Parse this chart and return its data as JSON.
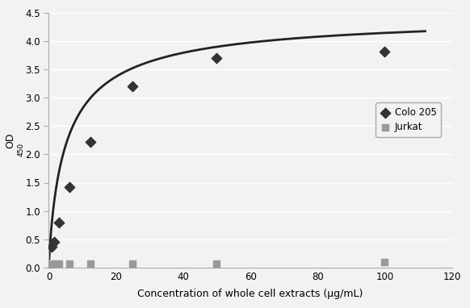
{
  "colo205_x": [
    0.78,
    1.56,
    3.125,
    6.25,
    12.5,
    25,
    50,
    100
  ],
  "colo205_y": [
    0.36,
    0.45,
    0.8,
    1.42,
    2.22,
    3.2,
    3.7,
    3.82
  ],
  "jurkat_x": [
    0.78,
    1.56,
    3.125,
    6.25,
    12.5,
    25,
    50,
    100
  ],
  "jurkat_y": [
    0.05,
    0.07,
    0.06,
    0.06,
    0.06,
    0.07,
    0.07,
    0.1
  ],
  "curve_x_start": 0.1,
  "curve_x_end": 112,
  "xlabel": "Concentration of whole cell extracts (μg/mL)",
  "xlim": [
    0,
    120
  ],
  "ylim": [
    0,
    4.5
  ],
  "xticks": [
    0,
    20,
    40,
    60,
    80,
    100,
    120
  ],
  "yticks": [
    0,
    0.5,
    1.0,
    1.5,
    2.0,
    2.5,
    3.0,
    3.5,
    4.0,
    4.5
  ],
  "colo205_color": "#333333",
  "jurkat_color": "#999999",
  "curve_color": "#222222",
  "background_color": "#f2f2f2",
  "plot_bg_color": "#f2f2f2",
  "grid_color": "#ffffff",
  "legend_labels": [
    "Colo 205",
    "Jurkat"
  ],
  "hill_Vmax": 4.5,
  "hill_K": 5.5,
  "hill_n": 0.85,
  "tick_fontsize": 8.5,
  "label_fontsize": 9
}
